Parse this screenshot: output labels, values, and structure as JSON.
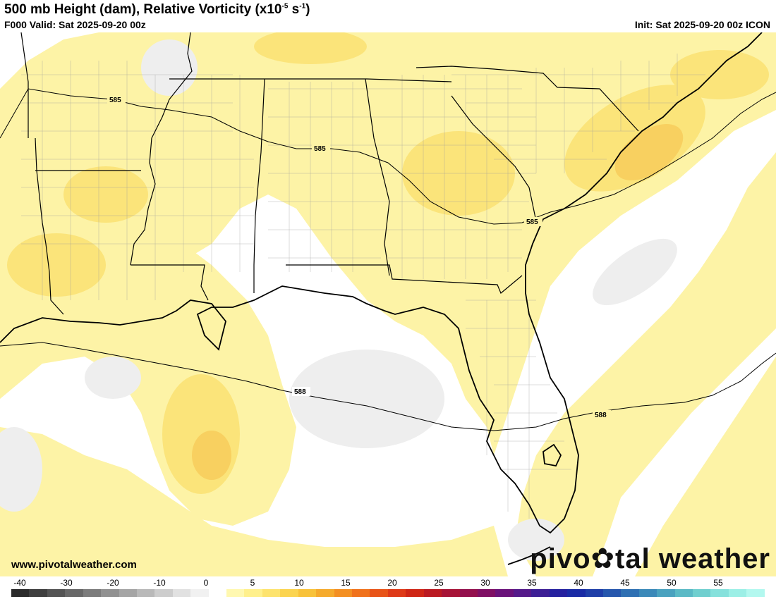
{
  "header": {
    "title_main": "500 mb Height (dam), Relative Vorticity (x10",
    "title_exp": "-5",
    "title_mid": " s",
    "title_exp2": "-1",
    "title_end": ")",
    "valid": "F000 Valid: Sat 2025-09-20 00z",
    "init": "Init: Sat 2025-09-20 00z ICON"
  },
  "map": {
    "contours": [
      {
        "label": "585",
        "label_2": "585",
        "label_3": "585"
      },
      {
        "label": "588",
        "label_2": "588"
      }
    ],
    "colors": {
      "land_yellow": "#fdf3a6",
      "mid_yellow": "#fbe47a",
      "orange": "#f8d060",
      "gray": "#eeeeee",
      "boundary": "#000000"
    }
  },
  "footer": {
    "website": "www.pivotalweather.com",
    "brand_left": "pivo",
    "brand_right": "tal weather"
  },
  "colorbar": {
    "ticks": [
      "-40",
      "-30",
      "-20",
      "-10",
      "0",
      "5",
      "10",
      "15",
      "20",
      "25",
      "30",
      "35",
      "40",
      "45",
      "50",
      "55"
    ],
    "colors": [
      "#2b2b2b",
      "#3f3f3f",
      "#545454",
      "#686868",
      "#7c7c7c",
      "#919191",
      "#a5a5a5",
      "#b9b9b9",
      "#cdcdcd",
      "#e1e1e1",
      "#f1f1f1",
      "#ffffff",
      "#fff8b0",
      "#fff08c",
      "#fde36e",
      "#fbd450",
      "#f8c23a",
      "#f5aa2c",
      "#f38f22",
      "#f0721c",
      "#e85418",
      "#de3a18",
      "#cf2616",
      "#bb1a22",
      "#a71437",
      "#93104d",
      "#7f0f64",
      "#6a127a",
      "#551a8a",
      "#3d1f95",
      "#25219f",
      "#1a2ba5",
      "#1f3fa8",
      "#2657ad",
      "#2f70b3",
      "#3b89b9",
      "#4aa2bf",
      "#5bbac6",
      "#70cfcf",
      "#86e1dc",
      "#9cefe6",
      "#b3f8ef"
    ]
  }
}
